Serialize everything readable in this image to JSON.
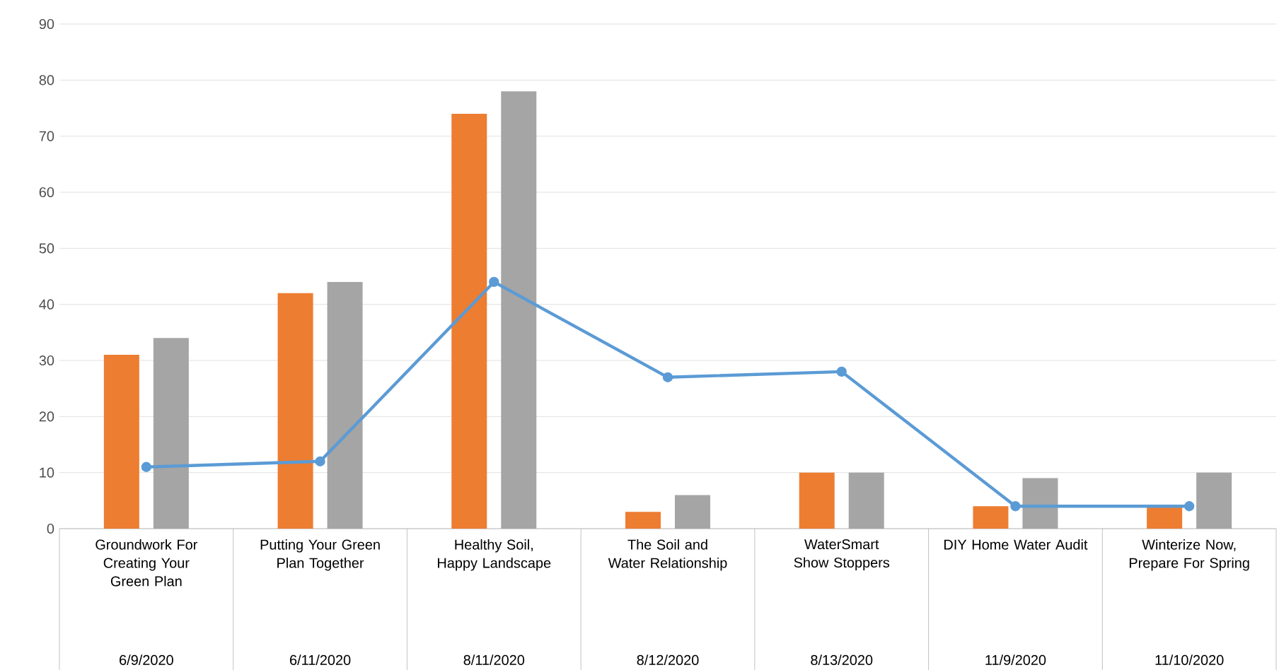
{
  "chart_data": {
    "type": "bar",
    "categories": [
      "Groundwork For Creating Your Green Plan",
      "Putting Your Green Plan Together",
      "Healthy Soil, Happy Landscape",
      "The Soil and Water Relationship",
      "WaterSmart Show Stoppers",
      "DIY Home Water Audit",
      "Winterize Now, Prepare For Spring"
    ],
    "series": [
      {
        "color": "#ed7d31",
        "values": [
          31,
          42,
          74,
          3,
          10,
          4,
          4
        ]
      },
      {
        "color": "#a5a5a5",
        "values": [
          34,
          44,
          78,
          6,
          10,
          9,
          10
        ]
      },
      {
        "type": "line",
        "color": "#5b9bd5",
        "marker": "circle",
        "line_style": "solid",
        "values": [
          11,
          12,
          44,
          27,
          28,
          4,
          4
        ]
      }
    ],
    "annotations": [
      "6/9/2020",
      "6/11/2020",
      "8/11/2020",
      "8/12/2020",
      "8/13/2020",
      "11/9/2020",
      "11/10/2020"
    ],
    "ylim": [
      0,
      90
    ],
    "yticks": [
      0,
      10,
      20,
      30,
      40,
      50,
      60,
      70,
      80,
      90
    ],
    "grid": "y"
  }
}
